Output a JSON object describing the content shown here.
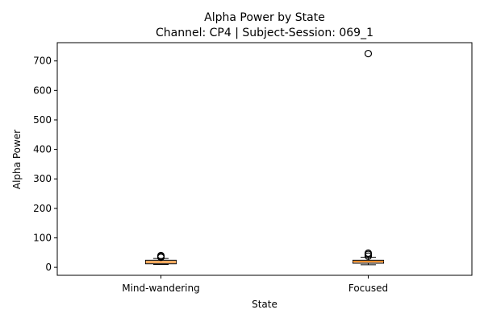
{
  "chart_data": {
    "type": "box",
    "title": "Alpha Power by State",
    "subtitle": "Channel: CP4 | Subject-Session: 069_1",
    "xlabel": "State",
    "ylabel": "Alpha Power",
    "ylim": [
      -27,
      762
    ],
    "yticks": [
      0,
      100,
      200,
      300,
      400,
      500,
      600,
      700
    ],
    "categories": [
      "Mind-wandering",
      "Focused"
    ],
    "boxes": [
      {
        "category": "Mind-wandering",
        "whisker_low": 10,
        "q1": 12,
        "median": 18,
        "q3": 24,
        "whisker_high": 30,
        "outliers": [
          34,
          37,
          40
        ]
      },
      {
        "category": "Focused",
        "whisker_low": 9,
        "q1": 14,
        "median": 20,
        "q3": 24,
        "whisker_high": 34,
        "outliers": [
          38,
          44,
          48,
          725
        ]
      }
    ],
    "grid": false,
    "colors": {
      "box_fill": "#ffdab9",
      "median": "#ff7f0e",
      "line": "#000000"
    }
  }
}
